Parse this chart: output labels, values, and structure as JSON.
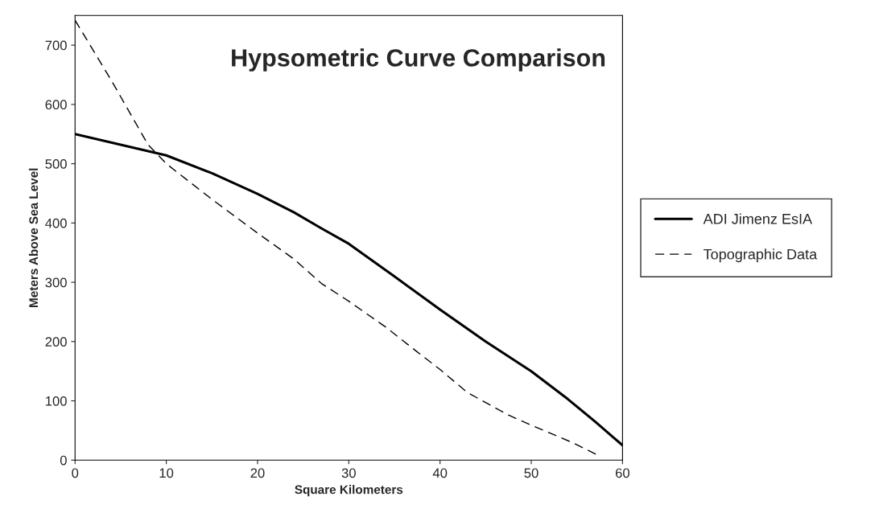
{
  "chart_data": {
    "type": "line",
    "title": "Hypsometric Curve Comparison",
    "xlabel": "Square Kilometers",
    "ylabel": "Meters Above Sea Level",
    "xlim": [
      0,
      60
    ],
    "xticks": [
      0,
      10,
      20,
      30,
      40,
      50,
      60
    ],
    "ylim": [
      0,
      750
    ],
    "yticks": [
      0,
      100,
      200,
      300,
      400,
      500,
      600,
      700
    ],
    "grid": false,
    "legend": "right",
    "marker": "none",
    "series": [
      {
        "name": "ADI Jimenz EsIA",
        "color": "#000000",
        "line_style": "solid",
        "x": [
          0,
          5,
          10,
          15,
          20,
          24,
          27,
          30,
          35,
          40,
          45,
          50,
          54,
          57,
          60
        ],
        "values": [
          550,
          532,
          514,
          484,
          449,
          418,
          391,
          365,
          310,
          254,
          200,
          150,
          103,
          65,
          25
        ]
      },
      {
        "name": "Topographic Data",
        "color": "#000000",
        "line_style": "dashed",
        "x": [
          0,
          4,
          8,
          10,
          15,
          20,
          24,
          27,
          30,
          34,
          37.3,
          40,
          43,
          47.5,
          50,
          54.6,
          57.1
        ],
        "values": [
          742,
          640,
          532,
          500,
          440,
          383,
          339,
          298,
          268,
          225,
          185,
          153,
          114,
          76,
          59,
          29,
          10
        ]
      }
    ]
  }
}
